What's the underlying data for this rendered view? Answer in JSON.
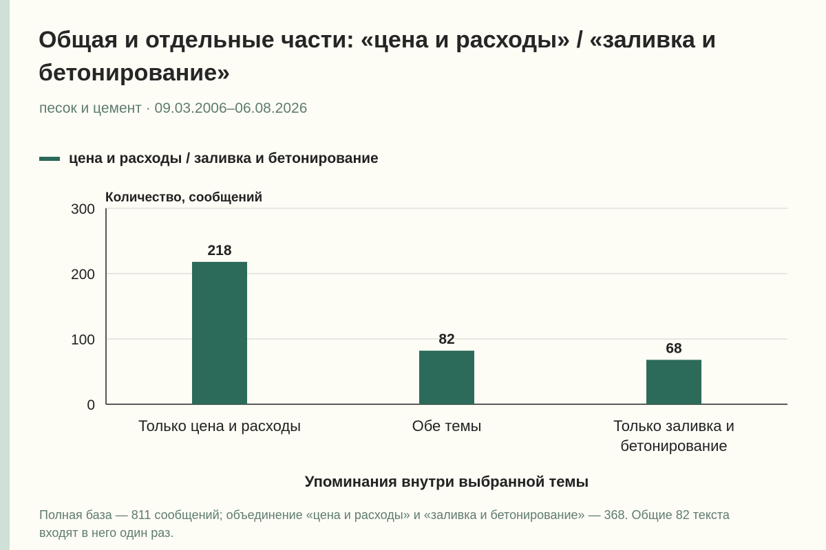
{
  "header": {
    "title": "Общая и отдельные части: «цена и расходы» / «заливка и бетонирование»",
    "subtitle": "песок и цемент · 09.03.2006–06.08.2026"
  },
  "legend": {
    "label": "цена и расходы / заливка и бетонирование",
    "color": "#2c6a5a"
  },
  "footnote": "Полная база — 811 сообщений; объединение «цена и расходы» и «заливка и бетонирование» — 368. Общие 82 текста входят в него один раз.",
  "chart_data": {
    "type": "bar",
    "categories": [
      [
        "Только цена и расходы"
      ],
      [
        "Обе темы"
      ],
      [
        "Только заливка и",
        "бетонирование"
      ]
    ],
    "series": [
      {
        "name": "цена и расходы / заливка и бетонирование",
        "values": [
          218,
          82,
          68
        ]
      }
    ],
    "data_labels": [
      "218",
      "82",
      "68"
    ],
    "ylabel": "Количество, сообщений",
    "xlabel": "Упоминания внутри выбранной темы",
    "ylim": [
      0,
      300
    ],
    "yticks": [
      0,
      100,
      200,
      300
    ],
    "grid": true,
    "legend_position": "top-left",
    "bar_color": "#2c6a5a"
  }
}
